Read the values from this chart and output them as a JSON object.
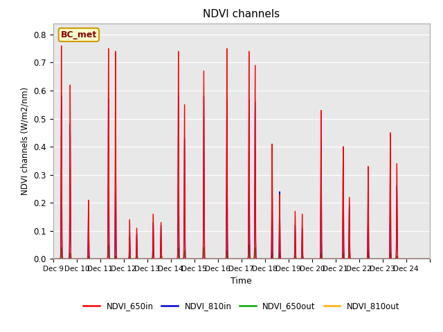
{
  "title": "NDVI channels",
  "ylabel": "NDVI channels (W/m2/nm)",
  "xlabel": "Time",
  "annotation": "BC_met",
  "ylim": [
    0.0,
    0.84
  ],
  "legend_labels": [
    "NDVI_650in",
    "NDVI_810in",
    "NDVI_650out",
    "NDVI_810out"
  ],
  "legend_colors": [
    "#ff0000",
    "#0000cd",
    "#00aa00",
    "#ffaa00"
  ],
  "background_color": "#e8e8e8",
  "tick_labels": [
    "Dec 9",
    "Dec 10",
    "Dec 11",
    "Dec 12",
    "Dec 13",
    "Dec 14",
    "Dec 15",
    "Dec 16",
    "Dec 17",
    "Dec 18",
    "Dec 19",
    "Dec 20",
    "Dec 21",
    "Dec 22",
    "Dec 23",
    "Dec 24"
  ],
  "num_days": 16,
  "spike_data": [
    [
      0.35,
      0.76,
      0.58,
      0.04,
      0.04
    ],
    [
      0.72,
      0.62,
      0.48,
      0.02,
      0.02
    ],
    [
      1.5,
      0.21,
      0.17,
      0.01,
      0.01
    ],
    [
      2.35,
      0.75,
      0.57,
      0.05,
      0.05
    ],
    [
      2.65,
      0.74,
      0.45,
      0.01,
      0.01
    ],
    [
      3.25,
      0.14,
      0.08,
      0.01,
      0.01
    ],
    [
      3.55,
      0.11,
      0.09,
      0.01,
      0.01
    ],
    [
      4.25,
      0.16,
      0.13,
      0.04,
      0.04
    ],
    [
      4.58,
      0.13,
      0.12,
      0.01,
      0.01
    ],
    [
      5.32,
      0.74,
      0.58,
      0.04,
      0.04
    ],
    [
      5.58,
      0.55,
      0.43,
      0.03,
      0.03
    ],
    [
      6.4,
      0.67,
      0.58,
      0.04,
      0.04
    ],
    [
      7.38,
      0.75,
      0.57,
      0.03,
      0.03
    ],
    [
      8.32,
      0.74,
      0.57,
      0.05,
      0.05
    ],
    [
      8.58,
      0.69,
      0.56,
      0.04,
      0.04
    ],
    [
      9.3,
      0.41,
      0.31,
      0.02,
      0.02
    ],
    [
      9.62,
      0.23,
      0.24,
      0.02,
      0.02
    ],
    [
      10.28,
      0.17,
      0.12,
      0.01,
      0.01
    ],
    [
      10.58,
      0.16,
      0.11,
      0.01,
      0.01
    ],
    [
      11.38,
      0.53,
      0.43,
      0.02,
      0.02
    ],
    [
      12.32,
      0.4,
      0.4,
      0.02,
      0.02
    ],
    [
      12.58,
      0.22,
      0.19,
      0.02,
      0.02
    ],
    [
      13.38,
      0.33,
      0.25,
      0.03,
      0.03
    ],
    [
      14.32,
      0.45,
      0.35,
      0.02,
      0.02
    ],
    [
      14.6,
      0.34,
      0.26,
      0.01,
      0.01
    ]
  ]
}
